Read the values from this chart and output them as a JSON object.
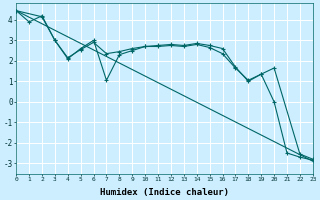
{
  "xlabel": "Humidex (Indice chaleur)",
  "bg_color": "#cceeff",
  "grid_color": "#ffffff",
  "line_color": "#006666",
  "xlim": [
    0,
    23
  ],
  "ylim": [
    -3.5,
    4.8
  ],
  "yticks": [
    -3,
    -2,
    -1,
    0,
    1,
    2,
    3,
    4
  ],
  "xticks": [
    0,
    1,
    2,
    3,
    4,
    5,
    6,
    7,
    8,
    9,
    10,
    11,
    12,
    13,
    14,
    15,
    16,
    17,
    18,
    19,
    20,
    21,
    22,
    23
  ],
  "line1_x": [
    0,
    23
  ],
  "line1_y": [
    4.45,
    -2.9
  ],
  "line2_x": [
    0,
    1,
    2,
    3,
    4,
    5,
    6,
    7,
    8,
    9,
    10,
    11,
    12,
    13,
    14,
    15,
    16,
    17,
    18,
    19,
    20,
    21,
    22,
    23
  ],
  "line2_y": [
    4.45,
    3.9,
    4.2,
    3.0,
    2.1,
    2.6,
    3.0,
    1.05,
    2.3,
    2.5,
    2.7,
    2.75,
    2.8,
    2.75,
    2.85,
    2.75,
    2.6,
    1.7,
    1.0,
    1.35,
    0.0,
    -2.5,
    -2.7,
    -2.85
  ],
  "line3_x": [
    0,
    2,
    3,
    4,
    5,
    6,
    7,
    8,
    9,
    10,
    11,
    12,
    13,
    14,
    15,
    16,
    17,
    18,
    19,
    20,
    22,
    23
  ],
  "line3_y": [
    4.45,
    4.15,
    3.0,
    2.15,
    2.55,
    2.9,
    2.35,
    2.45,
    2.6,
    2.7,
    2.7,
    2.75,
    2.7,
    2.8,
    2.65,
    2.35,
    1.65,
    1.05,
    1.35,
    1.65,
    -2.55,
    -2.8
  ]
}
